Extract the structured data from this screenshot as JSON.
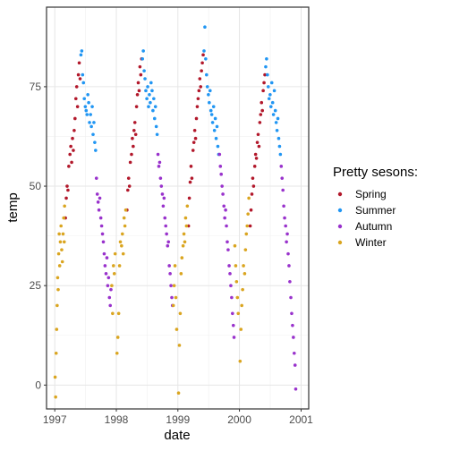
{
  "chart_data": {
    "type": "scatter",
    "title": "",
    "xlabel": "date",
    "ylabel": "temp",
    "xlim": [
      "1996-11-13",
      "2001-02-15"
    ],
    "ylim": [
      -6,
      95
    ],
    "x_ticks": [
      {
        "label": "1997",
        "date": "1997-01-01"
      },
      {
        "label": "1998",
        "date": "1998-01-01"
      },
      {
        "label": "1999",
        "date": "1999-01-01"
      },
      {
        "label": "2000",
        "date": "2000-01-01"
      },
      {
        "label": "2001",
        "date": "2001-01-01"
      }
    ],
    "y_ticks": [
      0,
      25,
      50,
      75
    ],
    "grid": true,
    "legend": {
      "title": "Pretty sesons:",
      "position": "right"
    },
    "series": [
      {
        "name": "Spring",
        "color": "#b2182b",
        "points": [
          [
            "1997-03-05",
            42
          ],
          [
            "1997-03-10",
            47
          ],
          [
            "1997-03-15",
            50
          ],
          [
            "1997-03-20",
            49
          ],
          [
            "1997-03-25",
            55
          ],
          [
            "1997-04-01",
            58
          ],
          [
            "1997-04-06",
            60
          ],
          [
            "1997-04-11",
            56
          ],
          [
            "1997-04-16",
            62
          ],
          [
            "1997-04-21",
            59
          ],
          [
            "1997-04-26",
            64
          ],
          [
            "1997-05-01",
            67
          ],
          [
            "1997-05-06",
            72
          ],
          [
            "1997-05-11",
            75
          ],
          [
            "1997-05-16",
            70
          ],
          [
            "1997-05-21",
            78
          ],
          [
            "1997-05-26",
            81
          ],
          [
            "1997-05-31",
            77
          ],
          [
            "1998-03-05",
            44
          ],
          [
            "1998-03-10",
            49
          ],
          [
            "1998-03-15",
            52
          ],
          [
            "1998-03-20",
            50
          ],
          [
            "1998-03-25",
            56
          ],
          [
            "1998-04-01",
            58
          ],
          [
            "1998-04-06",
            62
          ],
          [
            "1998-04-11",
            60
          ],
          [
            "1998-04-16",
            64
          ],
          [
            "1998-04-21",
            66
          ],
          [
            "1998-04-26",
            63
          ],
          [
            "1998-05-01",
            70
          ],
          [
            "1998-05-06",
            73
          ],
          [
            "1998-05-11",
            76
          ],
          [
            "1998-05-16",
            74
          ],
          [
            "1998-05-21",
            80
          ],
          [
            "1998-05-26",
            78
          ],
          [
            "1998-05-31",
            82
          ],
          [
            "1999-03-05",
            40
          ],
          [
            "1999-03-10",
            47
          ],
          [
            "1999-03-15",
            51
          ],
          [
            "1999-03-20",
            55
          ],
          [
            "1999-03-25",
            52
          ],
          [
            "1999-04-01",
            59
          ],
          [
            "1999-04-06",
            61
          ],
          [
            "1999-04-11",
            64
          ],
          [
            "1999-04-16",
            62
          ],
          [
            "1999-04-21",
            67
          ],
          [
            "1999-04-26",
            70
          ],
          [
            "1999-05-01",
            72
          ],
          [
            "1999-05-06",
            74
          ],
          [
            "1999-05-11",
            77
          ],
          [
            "1999-05-16",
            75
          ],
          [
            "1999-05-21",
            79
          ],
          [
            "1999-05-26",
            81
          ],
          [
            "1999-05-31",
            83
          ],
          [
            "2000-03-05",
            40
          ],
          [
            "2000-03-10",
            44
          ],
          [
            "2000-03-15",
            48
          ],
          [
            "2000-03-20",
            52
          ],
          [
            "2000-03-25",
            50
          ],
          [
            "2000-04-01",
            55
          ],
          [
            "2000-04-06",
            58
          ],
          [
            "2000-04-11",
            57
          ],
          [
            "2000-04-16",
            61
          ],
          [
            "2000-04-21",
            63
          ],
          [
            "2000-04-26",
            60
          ],
          [
            "2000-05-01",
            66
          ],
          [
            "2000-05-06",
            68
          ],
          [
            "2000-05-11",
            71
          ],
          [
            "2000-05-16",
            69
          ],
          [
            "2000-05-21",
            74
          ],
          [
            "2000-05-26",
            76
          ],
          [
            "2000-05-31",
            78
          ]
        ]
      },
      {
        "name": "Summer",
        "color": "#2196f3",
        "points": [
          [
            "1997-06-05",
            83
          ],
          [
            "1997-06-10",
            84
          ],
          [
            "1997-06-15",
            78
          ],
          [
            "1997-06-20",
            76
          ],
          [
            "1997-06-25",
            72
          ],
          [
            "1997-07-01",
            70
          ],
          [
            "1997-07-06",
            69
          ],
          [
            "1997-07-11",
            68
          ],
          [
            "1997-07-16",
            73
          ],
          [
            "1997-07-21",
            71
          ],
          [
            "1997-07-26",
            66
          ],
          [
            "1997-08-01",
            68
          ],
          [
            "1997-08-06",
            65
          ],
          [
            "1997-08-11",
            70
          ],
          [
            "1997-08-16",
            63
          ],
          [
            "1997-08-21",
            66
          ],
          [
            "1997-08-26",
            61
          ],
          [
            "1997-08-31",
            59
          ],
          [
            "1998-06-05",
            82
          ],
          [
            "1998-06-10",
            84
          ],
          [
            "1998-06-15",
            79
          ],
          [
            "1998-06-20",
            77
          ],
          [
            "1998-06-25",
            74
          ],
          [
            "1998-07-01",
            72
          ],
          [
            "1998-07-06",
            75
          ],
          [
            "1998-07-11",
            70
          ],
          [
            "1998-07-16",
            73
          ],
          [
            "1998-07-21",
            71
          ],
          [
            "1998-07-26",
            76
          ],
          [
            "1998-08-01",
            74
          ],
          [
            "1998-08-06",
            69
          ],
          [
            "1998-08-11",
            72
          ],
          [
            "1998-08-16",
            67
          ],
          [
            "1998-08-21",
            70
          ],
          [
            "1998-08-26",
            65
          ],
          [
            "1998-08-31",
            63
          ],
          [
            "1999-06-05",
            84
          ],
          [
            "1999-06-10",
            90
          ],
          [
            "1999-06-15",
            82
          ],
          [
            "1999-06-20",
            78
          ],
          [
            "1999-06-25",
            75
          ],
          [
            "1999-07-01",
            73
          ],
          [
            "1999-07-06",
            71
          ],
          [
            "1999-07-11",
            74
          ],
          [
            "1999-07-16",
            69
          ],
          [
            "1999-07-21",
            68
          ],
          [
            "1999-07-26",
            66
          ],
          [
            "1999-08-01",
            70
          ],
          [
            "1999-08-06",
            64
          ],
          [
            "1999-08-11",
            67
          ],
          [
            "1999-08-16",
            62
          ],
          [
            "1999-08-21",
            65
          ],
          [
            "1999-08-26",
            60
          ],
          [
            "1999-08-31",
            58
          ],
          [
            "2000-06-05",
            80
          ],
          [
            "2000-06-10",
            82
          ],
          [
            "2000-06-15",
            78
          ],
          [
            "2000-06-20",
            75
          ],
          [
            "2000-06-25",
            72
          ],
          [
            "2000-07-01",
            73
          ],
          [
            "2000-07-06",
            70
          ],
          [
            "2000-07-11",
            76
          ],
          [
            "2000-07-16",
            71
          ],
          [
            "2000-07-21",
            68
          ],
          [
            "2000-07-26",
            74
          ],
          [
            "2000-08-01",
            69
          ],
          [
            "2000-08-06",
            66
          ],
          [
            "2000-08-11",
            64
          ],
          [
            "2000-08-16",
            67
          ],
          [
            "2000-08-21",
            62
          ],
          [
            "2000-08-26",
            60
          ],
          [
            "2000-08-31",
            58
          ]
        ]
      },
      {
        "name": "Autumn",
        "color": "#9932cc",
        "points": [
          [
            "1997-09-05",
            52
          ],
          [
            "1997-09-10",
            48
          ],
          [
            "1997-09-15",
            46
          ],
          [
            "1997-09-20",
            44
          ],
          [
            "1997-09-25",
            47
          ],
          [
            "1997-10-01",
            42
          ],
          [
            "1997-10-06",
            40
          ],
          [
            "1997-10-11",
            38
          ],
          [
            "1997-10-16",
            36
          ],
          [
            "1997-10-21",
            33
          ],
          [
            "1997-10-26",
            30
          ],
          [
            "1997-11-01",
            28
          ],
          [
            "1997-11-06",
            32
          ],
          [
            "1997-11-11",
            25
          ],
          [
            "1997-11-16",
            27
          ],
          [
            "1997-11-21",
            22
          ],
          [
            "1997-11-26",
            20
          ],
          [
            "1997-11-30",
            24
          ],
          [
            "1998-09-05",
            58
          ],
          [
            "1998-09-10",
            55
          ],
          [
            "1998-09-15",
            56
          ],
          [
            "1998-09-20",
            52
          ],
          [
            "1998-09-25",
            50
          ],
          [
            "1998-10-01",
            48
          ],
          [
            "1998-10-06",
            45
          ],
          [
            "1998-10-11",
            47
          ],
          [
            "1998-10-16",
            42
          ],
          [
            "1998-10-21",
            40
          ],
          [
            "1998-10-26",
            38
          ],
          [
            "1998-11-01",
            35
          ],
          [
            "1998-11-06",
            36
          ],
          [
            "1998-11-11",
            30
          ],
          [
            "1998-11-16",
            28
          ],
          [
            "1998-11-21",
            25
          ],
          [
            "1998-11-26",
            22
          ],
          [
            "1998-11-30",
            20
          ],
          [
            "1999-09-05",
            58
          ],
          [
            "1999-09-10",
            55
          ],
          [
            "1999-09-15",
            53
          ],
          [
            "1999-09-20",
            50
          ],
          [
            "1999-09-25",
            48
          ],
          [
            "1999-10-01",
            45
          ],
          [
            "1999-10-06",
            42
          ],
          [
            "1999-10-11",
            44
          ],
          [
            "1999-10-16",
            40
          ],
          [
            "1999-10-21",
            36
          ],
          [
            "1999-10-26",
            34
          ],
          [
            "1999-11-01",
            30
          ],
          [
            "1999-11-06",
            28
          ],
          [
            "1999-11-11",
            25
          ],
          [
            "1999-11-16",
            22
          ],
          [
            "1999-11-21",
            18
          ],
          [
            "1999-11-26",
            15
          ],
          [
            "1999-11-30",
            12
          ],
          [
            "2000-09-05",
            55
          ],
          [
            "2000-09-10",
            52
          ],
          [
            "2000-09-15",
            49
          ],
          [
            "2000-09-20",
            45
          ],
          [
            "2000-09-25",
            42
          ],
          [
            "2000-10-01",
            40
          ],
          [
            "2000-10-06",
            36
          ],
          [
            "2000-10-11",
            38
          ],
          [
            "2000-10-16",
            33
          ],
          [
            "2000-10-21",
            30
          ],
          [
            "2000-10-26",
            26
          ],
          [
            "2000-11-01",
            22
          ],
          [
            "2000-11-06",
            18
          ],
          [
            "2000-11-11",
            15
          ],
          [
            "2000-11-16",
            12
          ],
          [
            "2000-11-21",
            8
          ],
          [
            "2000-11-26",
            5
          ],
          [
            "2000-11-30",
            -1
          ]
        ]
      },
      {
        "name": "Winter",
        "color": "#daa520",
        "points": [
          [
            "1997-01-03",
            2
          ],
          [
            "1997-01-06",
            -3
          ],
          [
            "1997-01-09",
            8
          ],
          [
            "1997-01-12",
            14
          ],
          [
            "1997-01-15",
            20
          ],
          [
            "1997-01-18",
            27
          ],
          [
            "1997-01-21",
            24
          ],
          [
            "1997-01-24",
            33
          ],
          [
            "1997-01-27",
            38
          ],
          [
            "1997-01-30",
            30
          ],
          [
            "1997-02-03",
            36
          ],
          [
            "1997-02-07",
            40
          ],
          [
            "1997-02-11",
            34
          ],
          [
            "1997-02-15",
            31
          ],
          [
            "1997-02-19",
            38
          ],
          [
            "1997-02-23",
            42
          ],
          [
            "1997-02-26",
            36
          ],
          [
            "1997-02-28",
            45
          ],
          [
            "1997-12-05",
            25
          ],
          [
            "1997-12-10",
            18
          ],
          [
            "1997-12-15",
            30
          ],
          [
            "1997-12-20",
            28
          ],
          [
            "1997-12-25",
            33
          ],
          [
            "1998-01-05",
            8
          ],
          [
            "1998-01-10",
            12
          ],
          [
            "1998-01-15",
            18
          ],
          [
            "1998-01-20",
            30
          ],
          [
            "1998-01-25",
            36
          ],
          [
            "1998-02-01",
            35
          ],
          [
            "1998-02-06",
            38
          ],
          [
            "1998-02-11",
            33
          ],
          [
            "1998-02-16",
            42
          ],
          [
            "1998-02-21",
            40
          ],
          [
            "1998-02-26",
            44
          ],
          [
            "1998-12-05",
            20
          ],
          [
            "1998-12-10",
            25
          ],
          [
            "1998-12-15",
            30
          ],
          [
            "1998-12-20",
            22
          ],
          [
            "1998-12-25",
            14
          ],
          [
            "1999-01-05",
            -2
          ],
          [
            "1999-01-10",
            10
          ],
          [
            "1999-01-15",
            18
          ],
          [
            "1999-01-20",
            28
          ],
          [
            "1999-01-25",
            32
          ],
          [
            "1999-02-01",
            35
          ],
          [
            "1999-02-06",
            38
          ],
          [
            "1999-02-11",
            36
          ],
          [
            "1999-02-16",
            42
          ],
          [
            "1999-02-21",
            40
          ],
          [
            "1999-02-26",
            45
          ],
          [
            "1999-12-05",
            35
          ],
          [
            "1999-12-10",
            30
          ],
          [
            "1999-12-15",
            26
          ],
          [
            "1999-12-20",
            22
          ],
          [
            "1999-12-25",
            18
          ],
          [
            "2000-01-05",
            6
          ],
          [
            "2000-01-10",
            14
          ],
          [
            "2000-01-15",
            20
          ],
          [
            "2000-01-20",
            24
          ],
          [
            "2000-01-25",
            30
          ],
          [
            "2000-02-01",
            28
          ],
          [
            "2000-02-06",
            34
          ],
          [
            "2000-02-11",
            38
          ],
          [
            "2000-02-16",
            40
          ],
          [
            "2000-02-21",
            43
          ],
          [
            "2000-02-26",
            47
          ]
        ]
      }
    ]
  }
}
